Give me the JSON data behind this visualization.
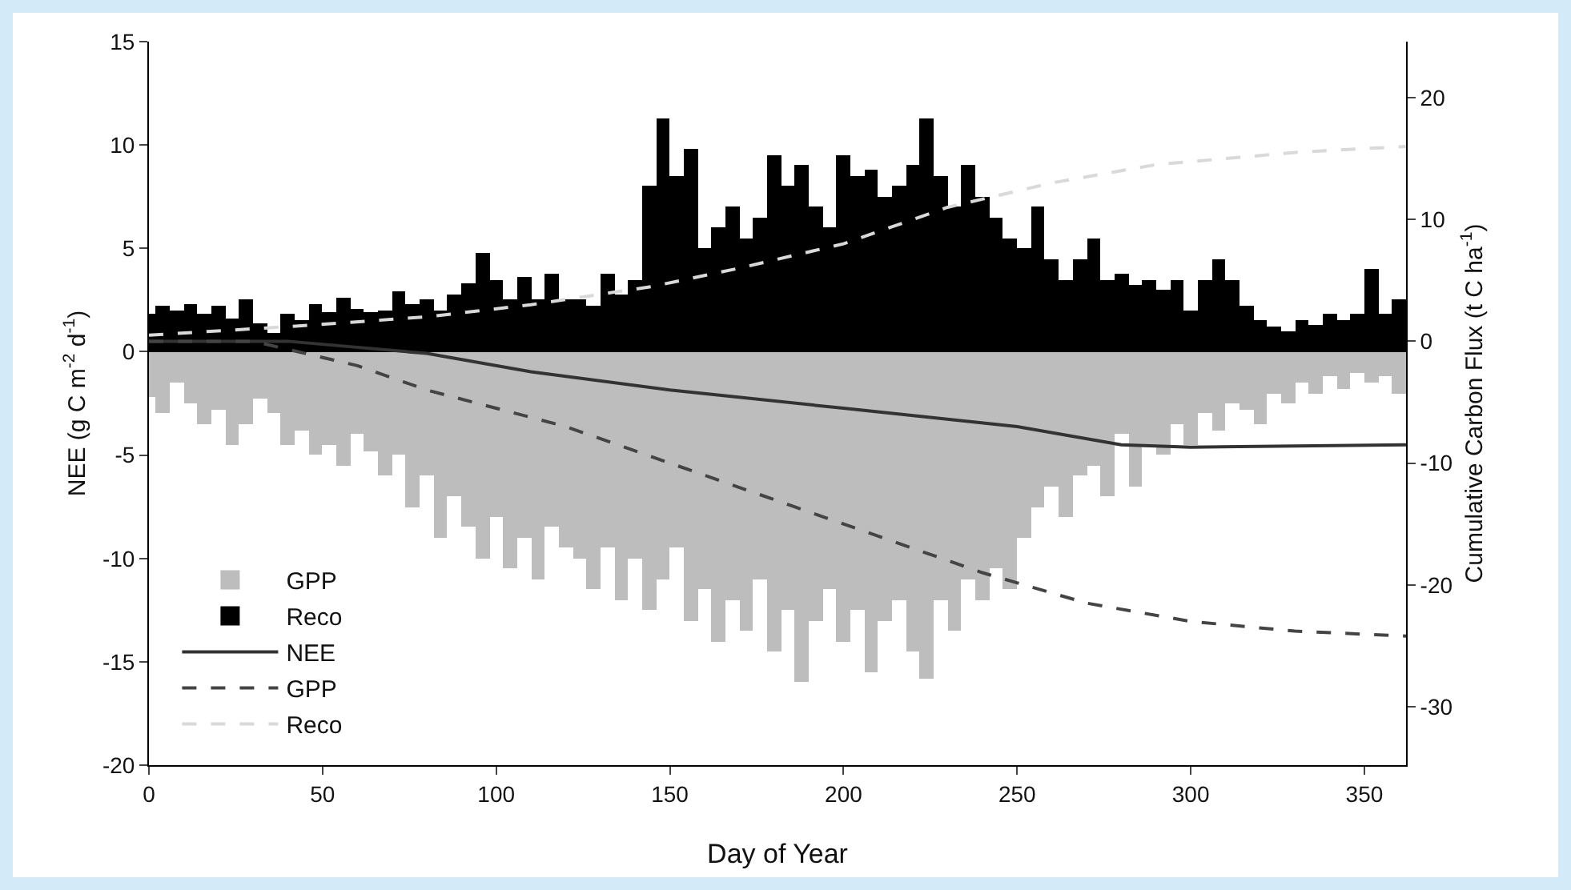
{
  "chart_data": {
    "type": "bar",
    "xlabel": "Day of Year",
    "ylabel": "NEE (g C m$^{-2}$ d$^{-1}$)",
    "y2label": "Cumulative Carbon Flux (t C ha$^{-1}$)",
    "xlim": [
      0,
      362
    ],
    "xticks": [
      0,
      50,
      100,
      150,
      200,
      250,
      300,
      350
    ],
    "ylim": [
      -20,
      15
    ],
    "yticks": [
      -20,
      -15,
      -10,
      -5,
      0,
      5,
      10,
      15
    ],
    "y2lim": [
      -34.8,
      24.6
    ],
    "y2ticks": [
      -30,
      -20,
      -10,
      0,
      10,
      20
    ],
    "grid": false,
    "stacked": true,
    "legend": "bottom left",
    "marker": "none",
    "x": [
      0,
      4,
      8,
      12,
      16,
      20,
      24,
      28,
      32,
      36,
      40,
      44,
      48,
      52,
      56,
      60,
      64,
      68,
      72,
      76,
      80,
      84,
      88,
      92,
      96,
      100,
      104,
      108,
      112,
      116,
      120,
      124,
      128,
      132,
      136,
      140,
      144,
      148,
      152,
      156,
      160,
      164,
      168,
      172,
      176,
      180,
      184,
      188,
      192,
      196,
      200,
      204,
      208,
      212,
      216,
      220,
      224,
      228,
      232,
      236,
      240,
      244,
      248,
      252,
      256,
      260,
      264,
      268,
      272,
      276,
      280,
      284,
      288,
      292,
      296,
      300,
      304,
      308,
      312,
      316,
      320,
      324,
      328,
      332,
      336,
      340,
      344,
      348,
      352,
      356,
      360
    ],
    "series": [
      {
        "name": "GPP",
        "color": "#bdbdbd",
        "values": [
          -2.2,
          -3.0,
          -1.5,
          -2.5,
          -3.5,
          -2.8,
          -4.5,
          -3.5,
          -2.3,
          -3.0,
          -4.5,
          -3.8,
          -5.0,
          -4.5,
          -5.5,
          -4.0,
          -4.8,
          -6.0,
          -5.0,
          -7.5,
          -6.0,
          -9.0,
          -7.0,
          -8.5,
          -10.0,
          -8.0,
          -10.5,
          -9.0,
          -11.0,
          -8.5,
          -9.5,
          -10.0,
          -11.5,
          -9.5,
          -12.0,
          -10.0,
          -12.5,
          -11.0,
          -9.5,
          -13.0,
          -11.5,
          -14.0,
          -12.0,
          -13.5,
          -11.0,
          -14.5,
          -12.5,
          -16.0,
          -13.0,
          -11.5,
          -14.0,
          -12.5,
          -15.5,
          -13.0,
          -12.0,
          -14.5,
          -15.8,
          -12.0,
          -13.5,
          -11.0,
          -12.0,
          -10.5,
          -11.5,
          -9.0,
          -7.5,
          -6.5,
          -8.0,
          -6.0,
          -5.5,
          -7.0,
          -4.0,
          -6.5,
          -4.5,
          -5.0,
          -3.5,
          -4.5,
          -3.0,
          -3.8,
          -2.5,
          -2.8,
          -3.5,
          -2.0,
          -2.5,
          -1.5,
          -2.0,
          -1.2,
          -1.8,
          -1.0,
          -1.5,
          -1.2,
          -2.0
        ]
      },
      {
        "name": "Reco",
        "color": "#000000",
        "values": [
          1.8,
          2.2,
          2.0,
          2.3,
          1.8,
          2.2,
          1.6,
          2.5,
          1.4,
          0.9,
          1.8,
          1.5,
          2.3,
          1.9,
          2.6,
          2.1,
          1.9,
          2.0,
          2.9,
          2.3,
          2.5,
          2.0,
          2.8,
          3.3,
          4.8,
          3.5,
          2.5,
          3.6,
          2.5,
          3.8,
          2.5,
          2.5,
          2.2,
          3.8,
          2.8,
          3.5,
          8.0,
          11.3,
          8.5,
          9.8,
          5.0,
          6.0,
          7.0,
          5.5,
          6.5,
          9.5,
          8.0,
          9.0,
          7.0,
          6.0,
          9.5,
          8.5,
          8.8,
          7.5,
          8.0,
          9.0,
          11.3,
          8.5,
          7.0,
          9.0,
          7.5,
          6.5,
          5.5,
          5.0,
          7.0,
          4.5,
          3.5,
          4.5,
          5.5,
          3.5,
          3.8,
          3.2,
          3.5,
          3.0,
          3.5,
          2.0,
          3.5,
          4.5,
          3.5,
          2.2,
          1.5,
          1.2,
          1.0,
          1.5,
          1.3,
          1.8,
          1.5,
          1.8,
          4.0,
          1.8,
          2.5
        ]
      },
      {
        "name": "NEE",
        "type": "line",
        "axis": "y2",
        "color": "#333333",
        "line_style": "solid",
        "x": [
          0,
          40,
          80,
          110,
          150,
          200,
          250,
          280,
          300,
          330,
          362
        ],
        "values": [
          0,
          0,
          -1,
          -2.5,
          -4,
          -5.5,
          -7,
          -8.5,
          -8.7,
          -8.6,
          -8.5
        ]
      },
      {
        "name": "GPP",
        "type": "line",
        "axis": "y2",
        "color": "#444444",
        "line_style": "dashed",
        "x": [
          0,
          30,
          60,
          80,
          120,
          160,
          200,
          240,
          270,
          300,
          330,
          362
        ],
        "values": [
          0,
          0,
          -2,
          -4,
          -7,
          -11,
          -15,
          -19,
          -21.5,
          -23,
          -23.8,
          -24.2
        ]
      },
      {
        "name": "Reco",
        "type": "line",
        "axis": "y2",
        "color": "#d9d9d9",
        "line_style": "dashed",
        "x": [
          0,
          40,
          80,
          110,
          145,
          170,
          200,
          230,
          260,
          290,
          330,
          362
        ],
        "values": [
          0.5,
          1.2,
          2,
          3,
          4.5,
          6,
          8,
          11,
          13,
          14.5,
          15.5,
          16
        ]
      }
    ]
  }
}
